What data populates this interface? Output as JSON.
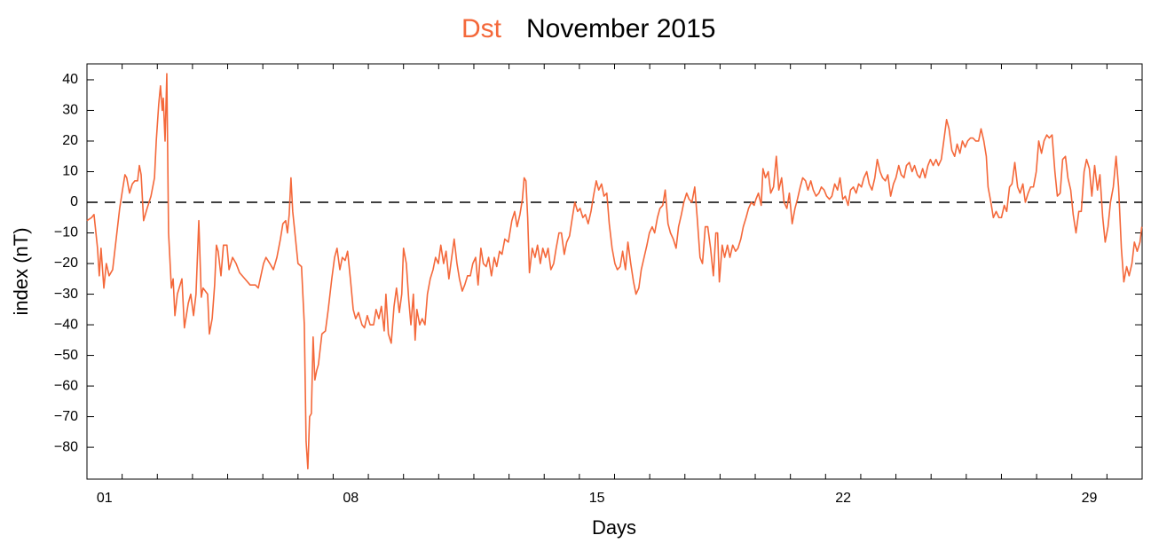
{
  "chart_data": {
    "type": "line",
    "title": "November 2015",
    "xlabel": "Days",
    "ylabel": "index (nT)",
    "xlim": [
      1,
      31
    ],
    "ylim": [
      -90.4,
      45.2
    ],
    "xticks": [
      {
        "value": 1.5,
        "label": "01"
      },
      {
        "value": 8.5,
        "label": "08"
      },
      {
        "value": 15.5,
        "label": "15"
      },
      {
        "value": 22.5,
        "label": "22"
      },
      {
        "value": 29.5,
        "label": "29"
      }
    ],
    "xminorticks": [
      2,
      3,
      4,
      5,
      6,
      7,
      8,
      9,
      10,
      11,
      12,
      13,
      14,
      15,
      16,
      17,
      18,
      19,
      20,
      21,
      22,
      23,
      24,
      25,
      26,
      27,
      28,
      29,
      30
    ],
    "yticks": [
      {
        "value": -80,
        "label": "−80"
      },
      {
        "value": -70,
        "label": "−70"
      },
      {
        "value": -60,
        "label": "−60"
      },
      {
        "value": -50,
        "label": "−50"
      },
      {
        "value": -40,
        "label": "−40"
      },
      {
        "value": -30,
        "label": "−30"
      },
      {
        "value": -20,
        "label": "−20"
      },
      {
        "value": -10,
        "label": "−10"
      },
      0,
      10,
      20,
      30,
      40
    ],
    "hline": 0,
    "x": [
      1.0,
      1.13,
      1.2,
      1.3,
      1.35,
      1.4,
      1.48,
      1.55,
      1.63,
      1.73,
      1.83,
      1.93,
      2.01,
      2.08,
      2.13,
      2.21,
      2.29,
      2.36,
      2.44,
      2.49,
      2.54,
      2.61,
      2.71,
      2.82,
      2.92,
      2.97,
      3.04,
      3.09,
      3.14,
      3.17,
      3.22,
      3.27,
      3.32,
      3.4,
      3.45,
      3.5,
      3.57,
      3.7,
      3.77,
      3.88,
      3.95,
      4.03,
      4.1,
      4.18,
      4.25,
      4.3,
      4.43,
      4.48,
      4.56,
      4.63,
      4.68,
      4.73,
      4.81,
      4.88,
      4.98,
      5.04,
      5.14,
      5.24,
      5.34,
      5.49,
      5.64,
      5.79,
      5.87,
      6.02,
      6.09,
      6.2,
      6.3,
      6.4,
      6.5,
      6.57,
      6.65,
      6.7,
      6.75,
      6.8,
      6.85,
      6.93,
      7.0,
      7.1,
      7.18,
      7.23,
      7.28,
      7.33,
      7.38,
      7.43,
      7.48,
      7.53,
      7.58,
      7.68,
      7.78,
      7.86,
      7.96,
      8.04,
      8.11,
      8.19,
      8.26,
      8.34,
      8.41,
      8.49,
      8.57,
      8.64,
      8.72,
      8.82,
      8.89,
      8.97,
      9.05,
      9.15,
      9.22,
      9.3,
      9.37,
      9.45,
      9.5,
      9.57,
      9.65,
      9.73,
      9.8,
      9.88,
      9.95,
      10.0,
      10.08,
      10.15,
      10.21,
      10.28,
      10.33,
      10.38,
      10.46,
      10.53,
      10.61,
      10.68,
      10.76,
      10.84,
      10.91,
      10.99,
      11.06,
      11.14,
      11.21,
      11.29,
      11.37,
      11.44,
      11.52,
      11.59,
      11.67,
      11.74,
      11.82,
      11.9,
      11.97,
      12.05,
      12.12,
      12.2,
      12.27,
      12.35,
      12.42,
      12.5,
      12.58,
      12.65,
      12.73,
      12.8,
      12.88,
      12.98,
      13.08,
      13.16,
      13.23,
      13.31,
      13.38,
      13.43,
      13.48,
      13.53,
      13.58,
      13.66,
      13.74,
      13.81,
      13.89,
      13.96,
      14.04,
      14.11,
      14.19,
      14.27,
      14.34,
      14.42,
      14.49,
      14.57,
      14.64,
      14.72,
      14.8,
      14.87,
      14.95,
      15.02,
      15.1,
      15.17,
      15.25,
      15.33,
      15.4,
      15.48,
      15.55,
      15.63,
      15.7,
      15.78,
      15.85,
      15.93,
      16.01,
      16.08,
      16.16,
      16.23,
      16.31,
      16.38,
      16.46,
      16.54,
      16.61,
      16.69,
      16.76,
      16.84,
      16.92,
      16.99,
      17.07,
      17.14,
      17.22,
      17.29,
      17.37,
      17.44,
      17.52,
      17.59,
      17.67,
      17.75,
      17.82,
      17.9,
      17.97,
      18.05,
      18.12,
      18.2,
      18.28,
      18.35,
      18.43,
      18.5,
      18.58,
      18.65,
      18.73,
      18.81,
      18.88,
      18.93,
      18.98,
      19.06,
      19.13,
      19.21,
      19.28,
      19.36,
      19.44,
      19.51,
      19.59,
      19.66,
      19.74,
      19.81,
      19.89,
      19.97,
      20.02,
      20.09,
      20.17,
      20.22,
      20.29,
      20.37,
      20.44,
      20.52,
      20.6,
      20.67,
      20.75,
      20.82,
      20.9,
      20.97,
      21.05,
      21.13,
      21.2,
      21.28,
      21.35,
      21.43,
      21.5,
      21.58,
      21.65,
      21.73,
      21.81,
      21.88,
      21.96,
      22.03,
      22.11,
      22.18,
      22.26,
      22.34,
      22.41,
      22.49,
      22.56,
      22.64,
      22.71,
      22.79,
      22.87,
      22.94,
      23.02,
      23.09,
      23.17,
      23.24,
      23.32,
      23.4,
      23.47,
      23.55,
      23.62,
      23.7,
      23.77,
      23.85,
      23.93,
      24.0,
      24.08,
      24.15,
      24.23,
      24.3,
      24.38,
      24.46,
      24.53,
      24.61,
      24.68,
      24.76,
      24.83,
      24.91,
      24.98,
      25.06,
      25.14,
      25.21,
      25.29,
      25.36,
      25.44,
      25.51,
      25.59,
      25.67,
      25.74,
      25.82,
      25.89,
      25.97,
      26.04,
      26.12,
      26.19,
      26.27,
      26.35,
      26.42,
      26.5,
      26.57,
      26.62,
      26.7,
      26.77,
      26.85,
      26.93,
      27.0,
      27.08,
      27.15,
      27.23,
      27.3,
      27.38,
      27.46,
      27.53,
      27.61,
      27.68,
      27.76,
      27.83,
      27.91,
      27.99,
      28.06,
      28.14,
      28.21,
      28.29,
      28.36,
      28.44,
      28.52,
      28.59,
      28.67,
      28.74,
      28.82,
      28.89,
      28.97,
      29.04,
      29.12,
      29.2,
      29.27,
      29.35,
      29.42,
      29.5,
      29.57,
      29.65,
      29.73,
      29.8,
      29.88,
      29.95,
      30.03,
      30.1,
      30.18,
      30.26,
      30.33,
      30.41,
      30.48,
      30.56,
      30.63,
      30.71,
      30.78,
      30.86,
      30.94,
      30.99
    ],
    "series": [
      {
        "name": "Dst",
        "color": "#f4683a",
        "values": [
          -6,
          -5,
          -4,
          -15,
          -24,
          -15,
          -28,
          -20,
          -24,
          -22,
          -12,
          -2,
          4,
          9,
          8,
          3,
          6,
          7,
          7,
          12,
          9,
          -6,
          -2,
          2,
          8,
          20,
          32,
          38,
          30,
          34,
          20,
          42,
          -10,
          -28,
          -25,
          -37,
          -30,
          -25,
          -41,
          -33,
          -30,
          -37,
          -30,
          -6,
          -31,
          -28,
          -30,
          -43,
          -38,
          -27,
          -14,
          -16,
          -24,
          -14,
          -14,
          -22,
          -18,
          -20,
          -23,
          -25,
          -27,
          -27,
          -28,
          -20,
          -18,
          -20,
          -22,
          -18,
          -12,
          -7,
          -6,
          -10,
          -4,
          8,
          -3,
          -12,
          -20,
          -21,
          -40,
          -78,
          -87,
          -70,
          -69,
          -44,
          -58,
          -55,
          -53,
          -43,
          -42,
          -35,
          -25,
          -18,
          -15,
          -22,
          -18,
          -19,
          -16,
          -25,
          -35,
          -38,
          -36,
          -40,
          -41,
          -37,
          -40,
          -40,
          -35,
          -38,
          -34,
          -42,
          -30,
          -43,
          -46,
          -34,
          -28,
          -36,
          -30,
          -15,
          -20,
          -32,
          -40,
          -30,
          -45,
          -35,
          -40,
          -38,
          -40,
          -30,
          -25,
          -22,
          -18,
          -20,
          -14,
          -20,
          -16,
          -25,
          -18,
          -12,
          -20,
          -25,
          -29,
          -27,
          -24,
          -24,
          -20,
          -18,
          -27,
          -15,
          -20,
          -21,
          -18,
          -24,
          -18,
          -21,
          -16,
          -17,
          -12,
          -13,
          -6,
          -3,
          -8,
          -4,
          1,
          8,
          7,
          -5,
          -23,
          -15,
          -18,
          -14,
          -20,
          -15,
          -18,
          -15,
          -22,
          -20,
          -15,
          -10,
          -10,
          -17,
          -13,
          -11,
          -5,
          0,
          -3,
          -2,
          -5,
          -4,
          -7,
          -3,
          2,
          7,
          4,
          6,
          2,
          3,
          -7,
          -15,
          -20,
          -22,
          -21,
          -16,
          -22,
          -13,
          -20,
          -26,
          -30,
          -28,
          -22,
          -18,
          -14,
          -10,
          -8,
          -10,
          -5,
          -2,
          -1,
          4,
          -7,
          -10,
          -12,
          -15,
          -8,
          -4,
          0,
          3,
          1,
          0,
          5,
          -5,
          -18,
          -20,
          -8,
          -8,
          -15,
          -24,
          -10,
          -10,
          -26,
          -14,
          -18,
          -14,
          -18,
          -14,
          -16,
          -15,
          -12,
          -8,
          -5,
          -2,
          0,
          -1,
          1,
          3,
          -1,
          11,
          8,
          10,
          3,
          5,
          15,
          4,
          8,
          0,
          -2,
          3,
          -7,
          -2,
          1,
          5,
          8,
          7,
          4,
          7,
          4,
          2,
          3,
          5,
          4,
          2,
          1,
          2,
          6,
          4,
          8,
          1,
          2,
          -1,
          4,
          5,
          3,
          6,
          5,
          8,
          10,
          6,
          4,
          8,
          14,
          10,
          8,
          7,
          9,
          2,
          6,
          8,
          12,
          9,
          8,
          12,
          13,
          10,
          12,
          9,
          8,
          11,
          8,
          12,
          14,
          12,
          14,
          12,
          14,
          20,
          27,
          24,
          17,
          15,
          19,
          16,
          20,
          18,
          20,
          21,
          21,
          20,
          20,
          24,
          20,
          15,
          5,
          0,
          -5,
          -3,
          -5,
          -5,
          -1,
          -3,
          5,
          6,
          13,
          5,
          3,
          6,
          0,
          3,
          5,
          5,
          10,
          20,
          16,
          20,
          22,
          21,
          22,
          10,
          2,
          3,
          14,
          15,
          8,
          4,
          -4,
          -10,
          -3,
          -3,
          10,
          14,
          11,
          2,
          12,
          4,
          9,
          -5,
          -13,
          -8,
          0,
          5,
          15,
          5,
          -15,
          -26,
          -21,
          -24,
          -20,
          -13,
          -16,
          -13,
          -8
        ]
      }
    ]
  }
}
